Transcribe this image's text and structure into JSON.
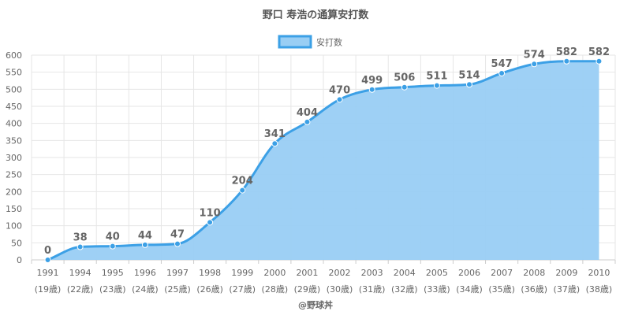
{
  "chart_data": {
    "type": "area",
    "title": "野口 寿浩の通算安打数",
    "categories": [
      "1991",
      "1994",
      "1995",
      "1996",
      "1997",
      "1998",
      "1999",
      "2000",
      "2001",
      "2002",
      "2003",
      "2004",
      "2005",
      "2006",
      "2007",
      "2008",
      "2009",
      "2010"
    ],
    "ages": [
      "(19歳)",
      "(22歳)",
      "(23歳)",
      "(24歳)",
      "(25歳)",
      "(26歳)",
      "(27歳)",
      "(28歳)",
      "(29歳)",
      "(30歳)",
      "(31歳)",
      "(32歳)",
      "(33歳)",
      "(34歳)",
      "(35歳)",
      "(36歳)",
      "(37歳)",
      "(38歳)"
    ],
    "series": [
      {
        "name": "安打数",
        "values": [
          0,
          38,
          40,
          44,
          47,
          110,
          204,
          341,
          404,
          470,
          499,
          506,
          511,
          514,
          547,
          574,
          582,
          582
        ]
      }
    ],
    "ylim": [
      0,
      600
    ],
    "yticks": [
      0,
      50,
      100,
      150,
      200,
      250,
      300,
      350,
      400,
      450,
      500,
      550,
      600
    ],
    "grid": true,
    "legend_position": "top-center",
    "data_labels": true,
    "colors": {
      "line": "#3ca0e6",
      "fill": "#99cef4",
      "grid": "#e6e6e6",
      "text": "#666666"
    },
    "credit": "@野球丼"
  }
}
